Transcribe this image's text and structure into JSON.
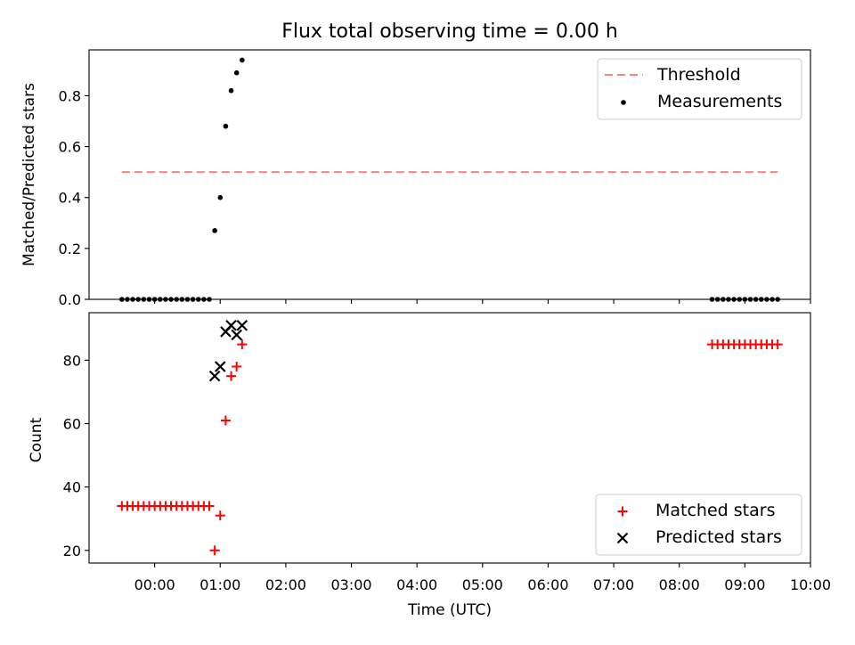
{
  "chart_data": [
    {
      "type": "scatter",
      "title": "Flux total observing time = 0.00 h",
      "xlabel": "",
      "ylabel": "Matched/Predicted stars",
      "xlim": [
        "2000-01-01T23:00",
        "2000-01-02T10:00"
      ],
      "ylim": [
        0,
        0.98
      ],
      "yticks": [
        0.0,
        0.2,
        0.4,
        0.6,
        0.8
      ],
      "ytick_labels": [
        "0.0",
        "0.2",
        "0.4",
        "0.6",
        "0.8"
      ],
      "legend_position": "top-right",
      "threshold": {
        "name": "Threshold",
        "value": 0.5,
        "x_start": "23:30",
        "x_end": "09:30",
        "color": "#ff8080",
        "style": "dashed"
      },
      "series": [
        {
          "name": "Measurements",
          "marker": "dot",
          "color": "#000000",
          "x": [
            "23:30",
            "23:35",
            "23:40",
            "23:45",
            "23:50",
            "23:55",
            "00:00",
            "00:05",
            "00:10",
            "00:15",
            "00:20",
            "00:25",
            "00:30",
            "00:35",
            "00:40",
            "00:45",
            "00:50",
            "00:55",
            "01:00",
            "01:05",
            "01:10",
            "01:15",
            "01:20",
            "08:30",
            "08:35",
            "08:40",
            "08:45",
            "08:50",
            "08:55",
            "09:00",
            "09:05",
            "09:10",
            "09:15",
            "09:20",
            "09:25",
            "09:30"
          ],
          "y": [
            0,
            0,
            0,
            0,
            0,
            0,
            0,
            0,
            0,
            0,
            0,
            0,
            0,
            0,
            0,
            0,
            0,
            0.27,
            0.4,
            0.68,
            0.82,
            0.89,
            0.94,
            0,
            0,
            0,
            0,
            0,
            0,
            0,
            0,
            0,
            0,
            0,
            0,
            0
          ]
        }
      ]
    },
    {
      "type": "scatter",
      "title": "",
      "xlabel": "Time (UTC)",
      "ylabel": "Count",
      "xlim": [
        "2000-01-01T23:00",
        "2000-01-02T10:00"
      ],
      "ylim": [
        16,
        95
      ],
      "yticks": [
        20,
        40,
        60,
        80
      ],
      "ytick_labels": [
        "20",
        "40",
        "60",
        "80"
      ],
      "xticks": [
        "00:00",
        "01:00",
        "02:00",
        "03:00",
        "04:00",
        "05:00",
        "06:00",
        "07:00",
        "08:00",
        "09:00",
        "10:00"
      ],
      "legend_position": "bottom-right",
      "series": [
        {
          "name": "Matched stars",
          "marker": "plus",
          "color": "#ff0000",
          "x": [
            "23:30",
            "23:35",
            "23:40",
            "23:45",
            "23:50",
            "23:55",
            "00:00",
            "00:05",
            "00:10",
            "00:15",
            "00:20",
            "00:25",
            "00:30",
            "00:35",
            "00:40",
            "00:45",
            "00:50",
            "00:55",
            "01:00",
            "01:05",
            "01:10",
            "01:15",
            "01:20",
            "08:30",
            "08:35",
            "08:40",
            "08:45",
            "08:50",
            "08:55",
            "09:00",
            "09:05",
            "09:10",
            "09:15",
            "09:20",
            "09:25",
            "09:30"
          ],
          "y": [
            34,
            34,
            34,
            34,
            34,
            34,
            34,
            34,
            34,
            34,
            34,
            34,
            34,
            34,
            34,
            34,
            34,
            20,
            31,
            61,
            75,
            78,
            85,
            85,
            85,
            85,
            85,
            85,
            85,
            85,
            85,
            85,
            85,
            85,
            85,
            85
          ]
        },
        {
          "name": "Predicted stars",
          "marker": "x",
          "color": "#000000",
          "x": [
            "00:55",
            "01:00",
            "01:05",
            "01:10",
            "01:15",
            "01:20"
          ],
          "y": [
            75,
            78,
            89,
            91,
            88,
            91
          ]
        }
      ]
    }
  ]
}
